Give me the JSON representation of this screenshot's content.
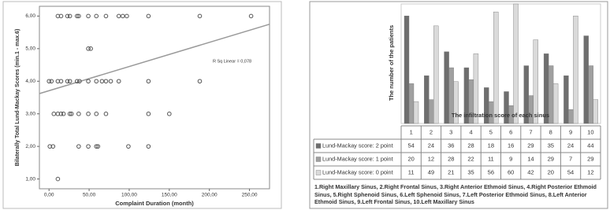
{
  "chart_data": [
    {
      "type": "scatter",
      "x_label": "Complaint Duration (month)",
      "y_label": "Bilaterally Total Lund-Mackay Scores (min.1 - max.6)",
      "annotation": "R Sq Linear = 0,078",
      "x": [
        11,
        15,
        23,
        26,
        35,
        37,
        49,
        59,
        71,
        87,
        92,
        97,
        124,
        188,
        252,
        49,
        52,
        0,
        3,
        11,
        15,
        23,
        26,
        35,
        38,
        49,
        59,
        66,
        71,
        77,
        87,
        124,
        188,
        6,
        11,
        15,
        18,
        26,
        28,
        37,
        49,
        59,
        71,
        124,
        150,
        1,
        5,
        37,
        49,
        59,
        61,
        99,
        124,
        11
      ],
      "values": [
        6,
        6,
        6,
        6,
        6,
        6,
        6,
        6,
        6,
        6,
        6,
        6,
        6,
        6,
        6,
        5,
        5,
        4,
        4,
        4,
        4,
        4,
        4,
        4,
        4,
        4,
        4,
        4,
        4,
        4,
        4,
        4,
        4,
        3,
        3,
        3,
        3,
        3,
        3,
        3,
        3,
        3,
        3,
        3,
        3,
        2,
        2,
        2,
        2,
        2,
        2,
        2,
        2,
        1
      ],
      "fit_line": {
        "x": [
          -12,
          275
        ],
        "y": [
          3.62,
          5.75
        ]
      },
      "xlim": [
        -12,
        275
      ],
      "ylim": [
        0.7,
        6.3
      ],
      "xticks": [
        {
          "value": 0,
          "label": "0,00"
        },
        {
          "value": 50,
          "label": "50,00"
        },
        {
          "value": 100,
          "label": "100,00"
        },
        {
          "value": 150,
          "label": "150,00"
        },
        {
          "value": 200,
          "label": "200,00"
        },
        {
          "value": 250,
          "label": "250,00"
        }
      ],
      "yticks": [
        {
          "value": 1,
          "label": "1,00"
        },
        {
          "value": 2,
          "label": "2,00"
        },
        {
          "value": 3,
          "label": "3,00"
        },
        {
          "value": 4,
          "label": "4,00"
        },
        {
          "value": 5,
          "label": "5,00"
        },
        {
          "value": 6,
          "label": "6,00"
        }
      ],
      "color": "#555555",
      "line_color": "#999999"
    },
    {
      "type": "bar",
      "x_label": "The infiltration score of each sinus",
      "y_label": "The number of the patients",
      "categories": [
        "1",
        "2",
        "3",
        "4",
        "5",
        "6",
        "7",
        "8",
        "9",
        "10"
      ],
      "series": [
        {
          "name": "Lund-Mackay score: 2 point",
          "color": "#6e6e6e",
          "values": [
            54,
            24,
            36,
            28,
            18,
            16,
            29,
            35,
            24,
            44
          ]
        },
        {
          "name": "Lund-Mackay score: 1 point",
          "color": "#a0a0a0",
          "values": [
            20,
            12,
            28,
            22,
            11,
            9,
            14,
            29,
            7,
            29
          ]
        },
        {
          "name": "Lund-Mackay score: 0 point",
          "color": "#dadada",
          "values": [
            11,
            49,
            21,
            35,
            56,
            60,
            42,
            20,
            54,
            12
          ]
        }
      ],
      "ylim": [
        0,
        60
      ],
      "footnote": "1.Right Maxillary Sinus, 2.Right Frontal Sinus, 3.Right Anterior Ethmoid Sinus, 4.Right Posterior Ethmoid Sinus, 5.Right Sphenoid Sinus, 6.Left Sphenoid Sinus, 7.Left Posterior Ethmoid Sinus, 8.Left Anterior Ethmoid Sinus, 9.Left Frontal Sinus, 10.Left Maxillary Sinus"
    }
  ]
}
